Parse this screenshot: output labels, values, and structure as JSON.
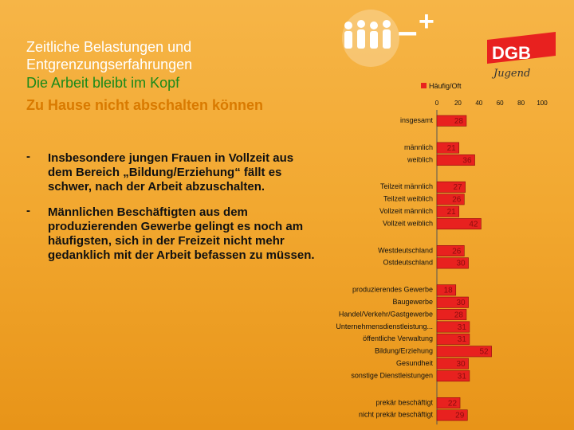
{
  "title": {
    "line1": "Zeitliche Belastungen und",
    "line2": "Entgrenzungserfahrungen",
    "line3": "Die Arbeit bleibt im Kopf",
    "line4": "Zu Hause nicht abschalten können"
  },
  "bullets": [
    {
      "dash": "-",
      "text": "Insbesondere jungen Frauen in Vollzeit aus dem Bereich „Bildung/Erziehung“ fällt es schwer, nach der Arbeit abzuschalten."
    },
    {
      "dash": "-",
      "text": "Männlichen Beschäftigten aus dem produzierenden Gewerbe gelingt es noch am häufigsten, sich in der Freizeit nicht mehr gedanklich mit der Arbeit befassen zu müssen."
    }
  ],
  "logo": {
    "brand": "DGB",
    "script": "Jugend",
    "minus": "–",
    "plus": "+"
  },
  "colors": {
    "bar": "#e8211f",
    "bar_outline": "#8a0d0d",
    "background": "#f2a830"
  },
  "chart_data": {
    "type": "bar",
    "orientation": "horizontal",
    "title": "",
    "legend": [
      "Häufig/Oft"
    ],
    "xlim": [
      0,
      100
    ],
    "xticks": [
      "0",
      "20",
      "40",
      "60",
      "80",
      "100"
    ],
    "categories": [
      "insgesamt",
      "männlich",
      "weiblich",
      "Teilzeit männlich",
      "Teilzeit weiblich",
      "Vollzeit männlich",
      "Vollzeit weiblich",
      "Westdeutschland",
      "Ostdeutschland",
      "produzierendes Gewerbe",
      "Baugewerbe",
      "Handel/Verkehr/Gastgewerbe",
      "Unternehmensdienstleistung...",
      "öffentliche Verwaltung",
      "Bildung/Erziehung",
      "Gesundheit",
      "sonstige Dienstleistungen",
      "prekär beschäftigt",
      "nicht prekär beschäftigt"
    ],
    "series": [
      {
        "name": "Häufig/Oft",
        "values": [
          28,
          21,
          36,
          27,
          26,
          21,
          42,
          26,
          30,
          18,
          30,
          28,
          31,
          31,
          52,
          30,
          31,
          22,
          29
        ]
      }
    ],
    "groups": [
      [
        0
      ],
      [
        1,
        2
      ],
      [
        3,
        4,
        5,
        6
      ],
      [
        7,
        8
      ],
      [
        9,
        10,
        11,
        12,
        13,
        14,
        15,
        16
      ],
      [
        17,
        18
      ]
    ]
  }
}
